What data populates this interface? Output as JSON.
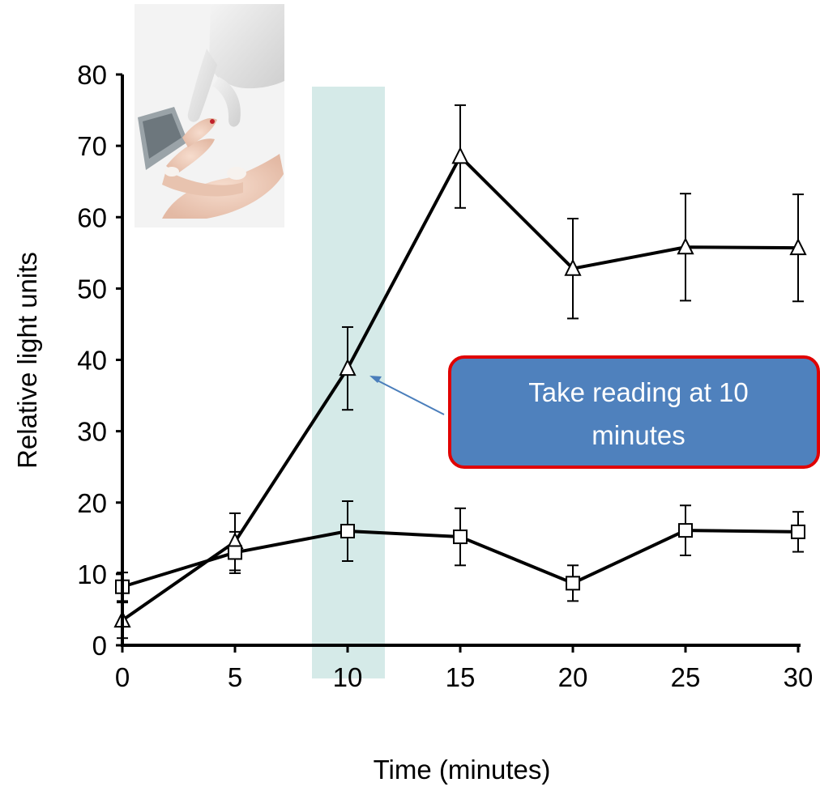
{
  "chart_data": {
    "type": "line",
    "title": "",
    "xlabel": "Time (minutes)",
    "ylabel": "Relative light units",
    "x": [
      0,
      5,
      10,
      15,
      20,
      25,
      30
    ],
    "xlim": [
      0,
      30
    ],
    "ylim": [
      0,
      80
    ],
    "xticks": [
      "0",
      "5",
      "10",
      "15",
      "20",
      "25",
      "30"
    ],
    "yticks": [
      "0",
      "10",
      "20",
      "30",
      "40",
      "50",
      "60",
      "70",
      "80"
    ],
    "grid": false,
    "series": [
      {
        "marker": "triangle",
        "values": [
          3.5,
          14.5,
          38.8,
          68.5,
          52.8,
          55.8,
          55.7
        ],
        "errors": [
          2.5,
          4.0,
          5.8,
          7.2,
          7.0,
          7.5,
          7.5
        ]
      },
      {
        "marker": "square",
        "values": [
          8.2,
          13.0,
          16.0,
          15.2,
          8.7,
          16.1,
          15.9
        ],
        "errors": [
          2.0,
          2.9,
          4.2,
          4.0,
          2.5,
          3.5,
          2.8
        ]
      }
    ],
    "highlight": {
      "x_center": 10,
      "color": "#d5eae8"
    },
    "annotation": {
      "lines": [
        "Take reading at 10",
        "minutes"
      ],
      "fill": "#4f81bd",
      "border": "#e00000",
      "arrow_color": "#4a7ebb"
    }
  },
  "inset_photo": {
    "icon": "glucose-meter-finger-prick-photo"
  }
}
